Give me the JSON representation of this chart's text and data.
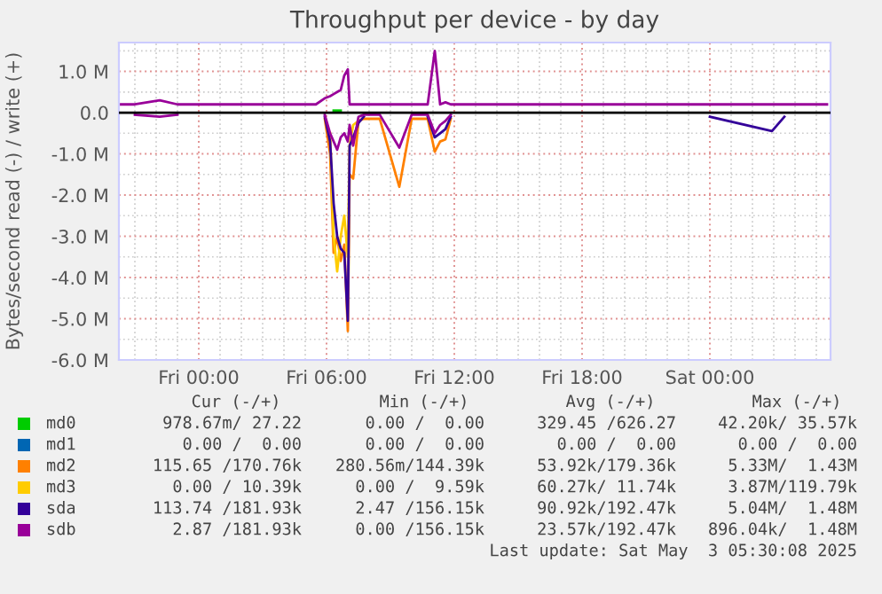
{
  "chart_data": {
    "type": "line",
    "title": "Throughput per device - by day",
    "ylabel": "Bytes/second read (-) / write (+)",
    "x": [
      "2025-05-01T20:15",
      "2025-05-01T21:00",
      "2025-05-01T22:10",
      "2025-05-01T23:00",
      "2025-05-02T02:00",
      "2025-05-02T04:00",
      "2025-05-02T05:30",
      "2025-05-02T05:55",
      "2025-05-02T06:10",
      "2025-05-02T06:20",
      "2025-05-02T06:30",
      "2025-05-02T06:40",
      "2025-05-02T06:50",
      "2025-05-02T07:00",
      "2025-05-02T07:05",
      "2025-05-02T07:15",
      "2025-05-02T07:30",
      "2025-05-02T07:45",
      "2025-05-02T08:30",
      "2025-05-02T09:25",
      "2025-05-02T10:00",
      "2025-05-02T10:45",
      "2025-05-02T11:05",
      "2025-05-02T11:20",
      "2025-05-02T11:35",
      "2025-05-02T11:50",
      "2025-05-02T12:10",
      "2025-05-02T13:00",
      "2025-05-02T15:00",
      "2025-05-02T18:00",
      "2025-05-02T21:00",
      "2025-05-03T00:00",
      "2025-05-03T02:55",
      "2025-05-03T03:30",
      "2025-05-03T05:30"
    ],
    "series": [
      {
        "name": "md0",
        "color": "#00cc00",
        "values": [
          null,
          null,
          null,
          null,
          null,
          null,
          null,
          null,
          null,
          50000,
          50000,
          50000,
          null,
          null,
          null,
          null,
          null,
          null,
          null,
          null,
          null,
          null,
          null,
          null,
          null,
          null,
          null,
          null,
          null,
          null,
          null,
          null,
          null,
          null,
          null
        ]
      },
      {
        "name": "md1",
        "color": "#0066b3",
        "values": [
          null,
          null,
          null,
          null,
          null,
          null,
          null,
          null,
          null,
          null,
          null,
          null,
          null,
          null,
          null,
          null,
          null,
          null,
          null,
          null,
          null,
          null,
          null,
          null,
          null,
          null,
          null,
          null,
          null,
          null,
          null,
          null,
          null,
          null,
          null
        ]
      },
      {
        "name": "md2",
        "color": "#ff8000",
        "values": [
          null,
          null,
          null,
          null,
          null,
          null,
          null,
          -150000,
          -1000000,
          -3400000,
          -3000000,
          -3600000,
          -3200000,
          -5300000,
          -1500000,
          -1600000,
          -200000,
          -150000,
          -150000,
          -1800000,
          -150000,
          -150000,
          -950000,
          -700000,
          -650000,
          -150000,
          null,
          null,
          null,
          null,
          null,
          null,
          null,
          null,
          null
        ]
      },
      {
        "name": "md3",
        "color": "#ffcc00",
        "values": [
          null,
          null,
          null,
          null,
          null,
          null,
          null,
          null,
          -500000,
          -3000000,
          -3850000,
          -3000000,
          -2500000,
          -3500000,
          -800000,
          -300000,
          -200000,
          null,
          null,
          null,
          null,
          null,
          null,
          null,
          null,
          null,
          null,
          null,
          null,
          null,
          null,
          null,
          null,
          null,
          null
        ]
      },
      {
        "name": "sda",
        "color": "#330099",
        "values": [
          null,
          null,
          null,
          null,
          null,
          null,
          null,
          -100000,
          -700000,
          -2200000,
          -3000000,
          -3300000,
          -3400000,
          -5050000,
          -800000,
          -600000,
          -250000,
          -100000,
          null,
          null,
          null,
          -100000,
          -600000,
          -500000,
          -400000,
          -100000,
          null,
          null,
          null,
          null,
          null,
          -100000,
          -450000,
          -100000,
          null
        ]
      },
      {
        "name": "sdb",
        "color": "#990099",
        "values": [
          200000,
          200000,
          300000,
          200000,
          200000,
          200000,
          200000,
          350000,
          400000,
          450000,
          500000,
          550000,
          900000,
          1050000,
          200000,
          200000,
          200000,
          200000,
          200000,
          200000,
          200000,
          200000,
          1500000,
          200000,
          250000,
          200000,
          200000,
          200000,
          200000,
          200000,
          200000,
          200000,
          200000,
          200000,
          200000
        ]
      },
      {
        "color": "#990099",
        "values": [
          null,
          -50000,
          -100000,
          -50000,
          null,
          null,
          null,
          -50000,
          -500000,
          -700000,
          -900000,
          -600000,
          -500000,
          -700000,
          -300000,
          -800000,
          -100000,
          -50000,
          -50000,
          -850000,
          -50000,
          -50000,
          -500000,
          -300000,
          -200000,
          -50000,
          null,
          null,
          null,
          null,
          null,
          null,
          null,
          null,
          null
        ]
      }
    ],
    "xlim": [
      "2025-05-01T20:15",
      "2025-05-03T05:40"
    ],
    "xticks": [
      {
        "value": "2025-05-02T00:00",
        "label": "Fri 00:00"
      },
      {
        "value": "2025-05-02T06:00",
        "label": "Fri 06:00"
      },
      {
        "value": "2025-05-02T12:00",
        "label": "Fri 12:00"
      },
      {
        "value": "2025-05-02T18:00",
        "label": "Fri 18:00"
      },
      {
        "value": "2025-05-03T00:00",
        "label": "Sat 00:00"
      }
    ],
    "ylim": [
      -6000000,
      1700000
    ],
    "yticks": [
      {
        "value": -6000000,
        "label": "-6.0 M"
      },
      {
        "value": -5000000,
        "label": "-5.0 M"
      },
      {
        "value": -4000000,
        "label": "-4.0 M"
      },
      {
        "value": -3000000,
        "label": "-3.0 M"
      },
      {
        "value": -2000000,
        "label": "-2.0 M"
      },
      {
        "value": -1000000,
        "label": "-1.0 M"
      },
      {
        "value": 0,
        "label": "0.0"
      },
      {
        "value": 1000000,
        "label": "1.0 M"
      }
    ],
    "ref_lines": [
      {
        "axis": "y",
        "value": 0,
        "color": "#000000"
      }
    ],
    "grid": true,
    "legend": "bottom",
    "marker": "none",
    "line_style": "solid",
    "annotations": [
      "Cur (-/+)",
      "Min (-/+)",
      "Avg (-/+)",
      "Max (-/+)",
      "978.67m/ 27.22",
      "0.00 /  0.00",
      "329.45 /626.27",
      "42.20k/ 35.57k",
      "0.00 /  0.00",
      "0.00 /  0.00",
      "0.00 /  0.00",
      "0.00 /  0.00",
      "115.65 /170.76k",
      "280.56m/144.39k",
      "53.92k/179.36k",
      "5.33M/  1.43M",
      "0.00 / 10.39k",
      "0.00 /  9.59k",
      "60.27k/ 11.74k",
      "3.87M/119.79k",
      "113.74 /181.93k",
      "2.47 /156.15k",
      "90.92k/192.47k",
      "5.04M/  1.48M",
      "2.87 /181.93k",
      "0.00 /156.15k",
      "23.57k/192.47k",
      "896.04k/  1.48M",
      "Last update: Sat May  3 05:30:08 2025"
    ]
  }
}
